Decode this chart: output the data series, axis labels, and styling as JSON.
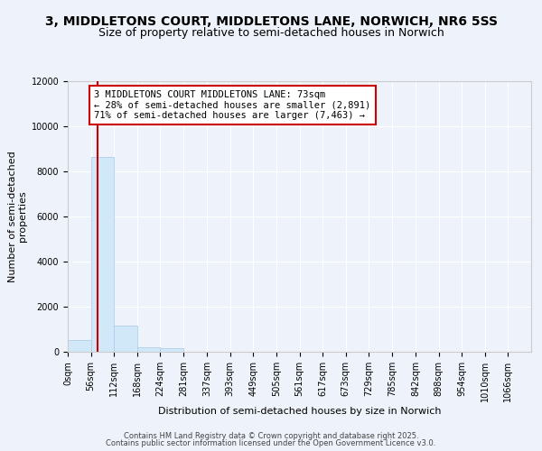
{
  "title1": "3, MIDDLETONS COURT, MIDDLETONS LANE, NORWICH, NR6 5SS",
  "title2": "Size of property relative to semi-detached houses in Norwich",
  "xlabel": "Distribution of semi-detached houses by size in Norwich",
  "ylabel": "Number of semi-detached\nproperties",
  "bar_edges": [
    0,
    56,
    112,
    168,
    224,
    281,
    337,
    393,
    449,
    505,
    561,
    617,
    673,
    729,
    785,
    842,
    898,
    954,
    1010,
    1066,
    1122
  ],
  "bar_heights": [
    530,
    8650,
    1180,
    195,
    150,
    18,
    4,
    2,
    1,
    1,
    0,
    0,
    0,
    0,
    0,
    0,
    0,
    0,
    0,
    0
  ],
  "bar_color": "#d0e8f8",
  "bar_edgecolor": "#a8c8e8",
  "property_size": 73,
  "property_label": "3 MIDDLETONS COURT MIDDLETONS LANE: 73sqm",
  "pct_smaller": 28,
  "pct_larger": 71,
  "n_smaller": 2891,
  "n_larger": 7463,
  "vline_color": "#cc0000",
  "annotation_box_edgecolor": "#cc0000",
  "ylim": [
    0,
    12000
  ],
  "yticks": [
    0,
    2000,
    4000,
    6000,
    8000,
    10000,
    12000
  ],
  "background_color": "#eef2fa",
  "footer_line1": "Contains HM Land Registry data © Crown copyright and database right 2025.",
  "footer_line2": "Contains public sector information licensed under the Open Government Licence v3.0.",
  "grid_color": "#ffffff",
  "title_fontsize": 10,
  "subtitle_fontsize": 9,
  "axis_label_fontsize": 8,
  "tick_fontsize": 7,
  "annotation_fontsize": 7.5
}
